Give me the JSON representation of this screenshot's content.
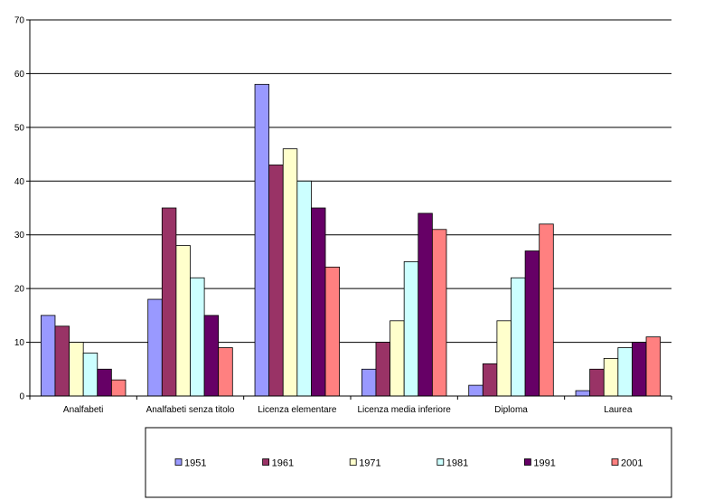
{
  "chart_data": {
    "type": "bar",
    "categories": [
      "Analfabeti",
      "Analfabeti senza titolo",
      "Licenza elementare",
      "Licenza media inferiore",
      "Diploma",
      "Laurea"
    ],
    "series": [
      {
        "name": "1951",
        "color": "#9999ff",
        "values": [
          15,
          18,
          58,
          5,
          2,
          1
        ]
      },
      {
        "name": "1961",
        "color": "#993366",
        "values": [
          13,
          35,
          43,
          10,
          6,
          5
        ]
      },
      {
        "name": "1971",
        "color": "#ffffcc",
        "values": [
          10,
          28,
          46,
          14,
          14,
          7
        ]
      },
      {
        "name": "1981",
        "color": "#ccffff",
        "values": [
          8,
          22,
          40,
          25,
          22,
          9
        ]
      },
      {
        "name": "1991",
        "color": "#660066",
        "values": [
          5,
          15,
          35,
          34,
          27,
          10
        ]
      },
      {
        "name": "2001",
        "color": "#ff8080",
        "values": [
          3,
          9,
          24,
          31,
          32,
          11
        ]
      }
    ],
    "ylim": [
      0,
      70
    ],
    "yticks": [
      0,
      10,
      20,
      30,
      40,
      50,
      60,
      70
    ],
    "grid": true,
    "legend_position": "bottom"
  }
}
